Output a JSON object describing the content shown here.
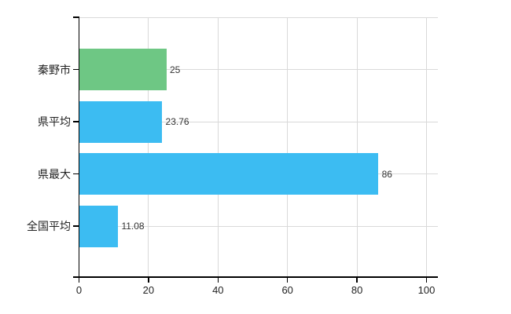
{
  "chart_data": {
    "type": "bar",
    "orientation": "horizontal",
    "title": "",
    "categories": [
      "秦野市",
      "県平均",
      "県最大",
      "全国平均"
    ],
    "values": [
      25,
      23.76,
      86,
      11.08
    ],
    "value_labels": [
      "25",
      "23.76",
      "86",
      "11.08"
    ],
    "bar_colors": [
      "#6EC784",
      "#3CBCF2",
      "#3CBCF2",
      "#3CBCF2"
    ],
    "xlim": [
      0,
      100
    ],
    "x_ticks": [
      0,
      20,
      40,
      60,
      80,
      100
    ],
    "x_tick_labels": [
      "0",
      "20",
      "40",
      "60",
      "80",
      "100"
    ],
    "grid": true,
    "grid_horizontal_at": "category-centers",
    "legend_position": "none"
  },
  "colors": {
    "background": "#ffffff",
    "grid": "#d9d9d9",
    "axis": "#000000",
    "text": "#222222",
    "value_text": "#333333",
    "bar_green": "#6EC784",
    "bar_blue": "#3CBCF2"
  }
}
